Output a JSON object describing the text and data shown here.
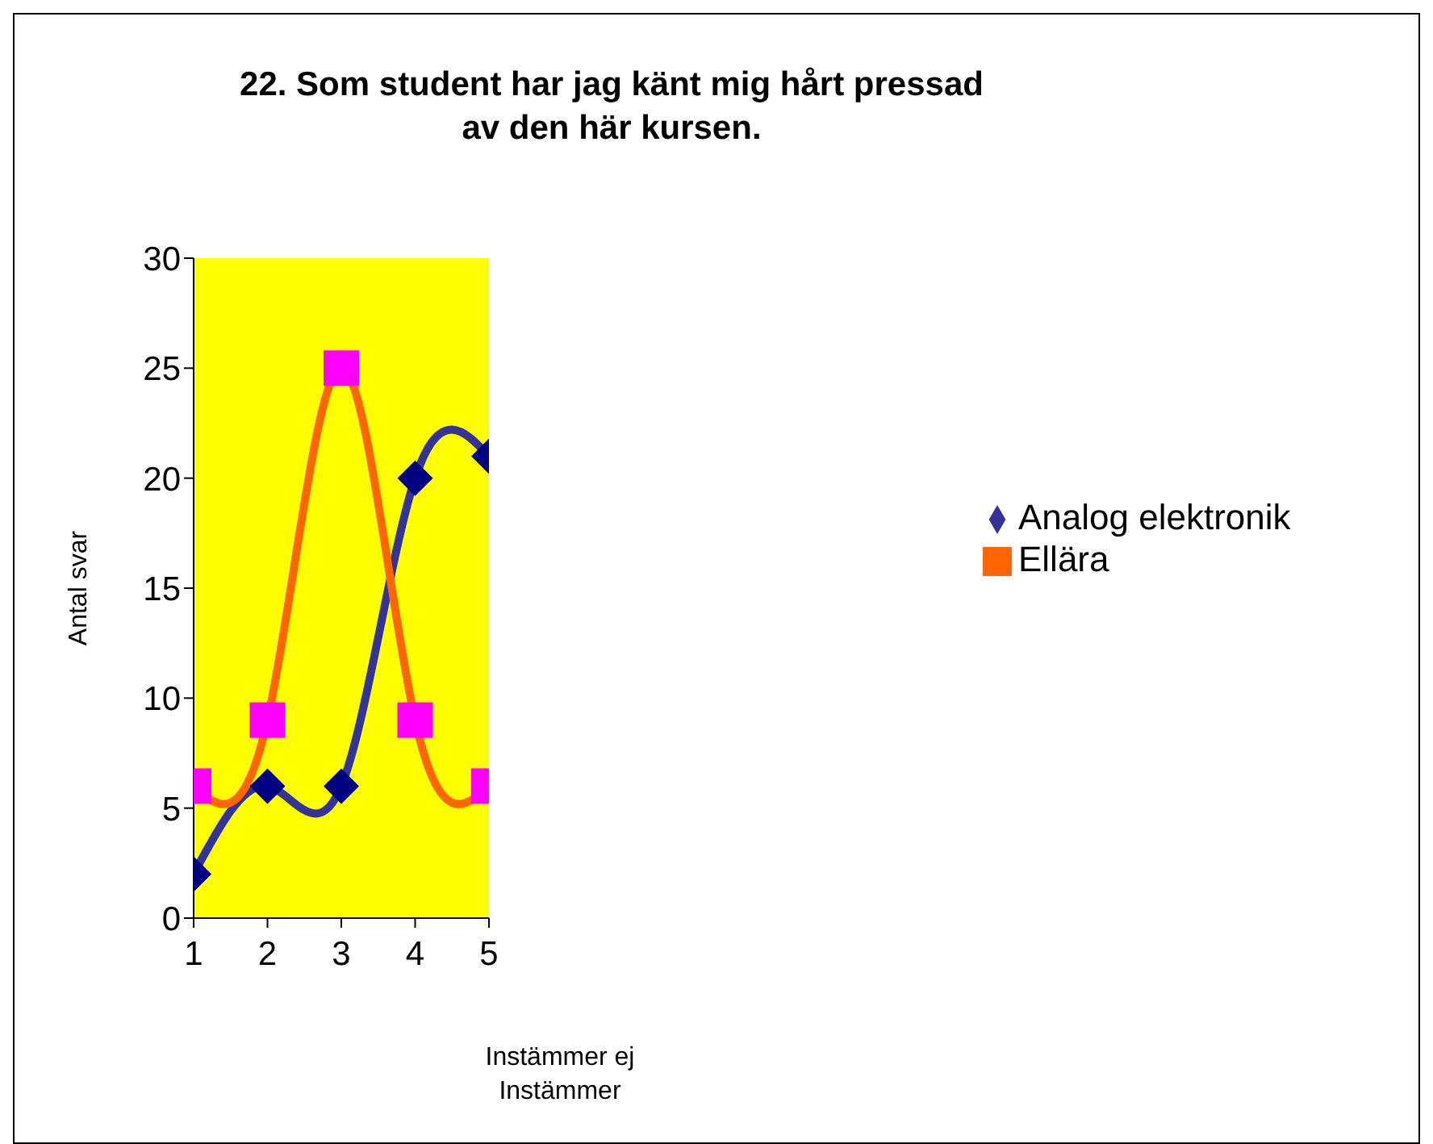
{
  "chart_data": {
    "type": "line",
    "title": "22. Som student har jag känt mig hårt pressad\nav den här kursen.",
    "xlabel": "Instämmer ej\nInstämmer",
    "ylabel": "Antal svar",
    "x": [
      1,
      2,
      3,
      4,
      5
    ],
    "xlim": [
      1,
      5
    ],
    "xticks": [
      1,
      2,
      3,
      4,
      5
    ],
    "ylim": [
      0,
      30
    ],
    "yticks": [
      0,
      5,
      10,
      15,
      20,
      25,
      30
    ],
    "grid": false,
    "legend": "right",
    "line_style": "solid",
    "series": [
      {
        "name": "Analog elektronik",
        "color": "#333399",
        "colors": [
          "#000080",
          "#000080",
          "#000080",
          "#000080",
          "#000080"
        ],
        "marker": "diamond",
        "values": [
          2,
          6,
          6,
          20,
          21
        ]
      },
      {
        "name": "Ellära",
        "color": "#ff6600",
        "colors": [
          "#ff00ff",
          "#ff00ff",
          "#ff00ff",
          "#ff00ff",
          "#ff00ff"
        ],
        "marker": "square",
        "values": [
          6,
          9,
          25,
          9,
          6
        ]
      }
    ]
  }
}
